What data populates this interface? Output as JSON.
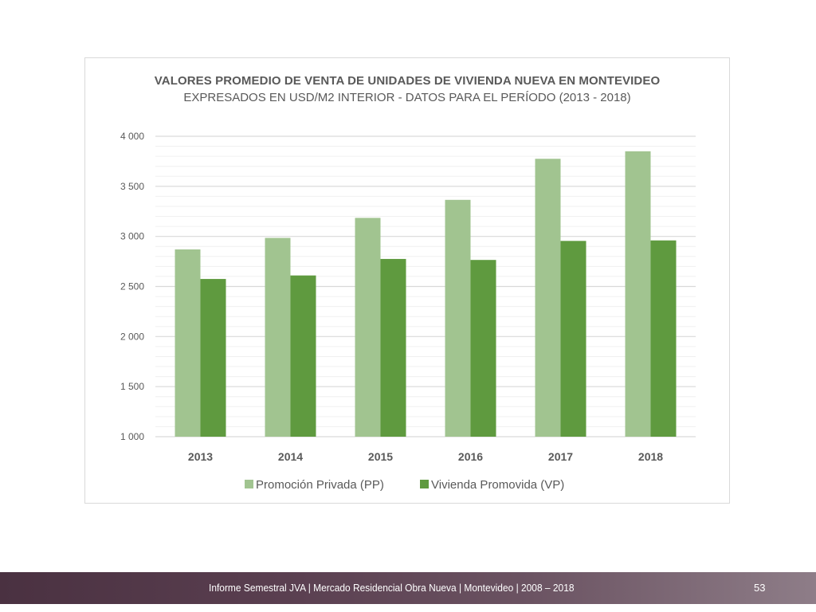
{
  "chart_data": {
    "type": "bar",
    "title": "VALORES PROMEDIO DE VENTA DE UNIDADES DE VIVIENDA NUEVA EN MONTEVIDEO",
    "subtitle": "EXPRESADOS EN USD/M2 INTERIOR - DATOS PARA EL PERÍODO (2013 - 2018)",
    "categories": [
      "2013",
      "2014",
      "2015",
      "2016",
      "2017",
      "2018"
    ],
    "series": [
      {
        "name": "Promoción Privada (PP)",
        "color": "#a1c490",
        "values": [
          2870,
          2985,
          3185,
          3365,
          3775,
          3850
        ]
      },
      {
        "name": "Vivienda Promovida (VP)",
        "color": "#5f9a3f",
        "values": [
          2575,
          2610,
          2775,
          2765,
          2955,
          2960
        ]
      }
    ],
    "ylim": [
      1000,
      4000
    ],
    "ytick_values": [
      1000,
      1500,
      2000,
      2500,
      3000,
      3500,
      4000
    ],
    "ytick_labels": [
      "1 000",
      "1 500",
      "2 000",
      "2 500",
      "3 000",
      "3 500",
      "4 000"
    ],
    "xlabel": "",
    "ylabel": "",
    "grid": true,
    "legend_position": "bottom"
  },
  "footer": {
    "text": "Informe Semestral JVA | Mercado Residencial Obra Nueva | Montevideo | 2008 – 2018",
    "page_number": "53"
  },
  "colors": {
    "grid_major": "#d9d9d9",
    "grid_minor": "#f0f0f0",
    "text": "#595959",
    "footer_start": "#4a3141",
    "footer_end": "#8e7d88"
  }
}
